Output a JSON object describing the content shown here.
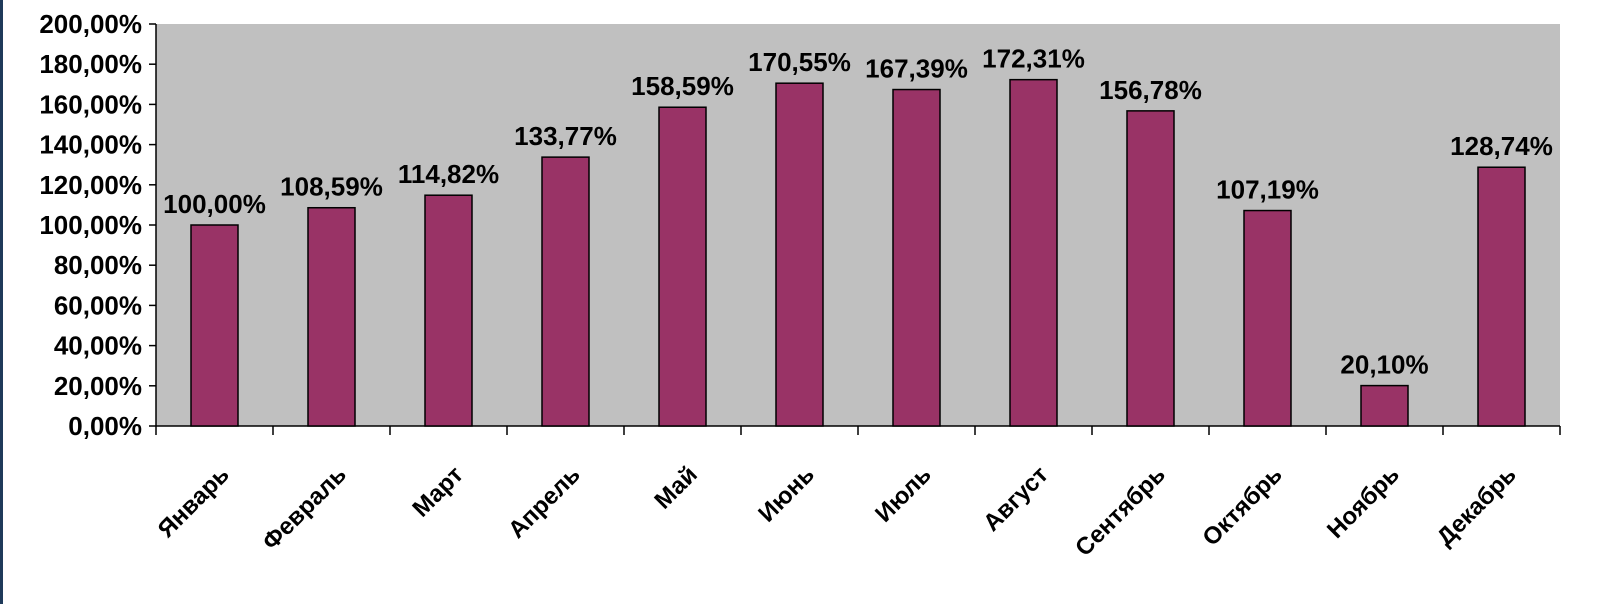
{
  "chart_data": {
    "type": "bar",
    "categories": [
      "Январь",
      "Февраль",
      "Март",
      "Апрель",
      "Май",
      "Июнь",
      "Июль",
      "Август",
      "Сентябрь",
      "Октябрь",
      "Ноябрь",
      "Декабрь"
    ],
    "values": [
      100.0,
      108.59,
      114.82,
      133.77,
      158.59,
      170.55,
      167.39,
      172.31,
      156.78,
      107.19,
      20.1,
      128.74
    ],
    "data_labels": [
      "100,00%",
      "108,59%",
      "114,82%",
      "133,77%",
      "158,59%",
      "170,55%",
      "167,39%",
      "172,31%",
      "156,78%",
      "107,19%",
      "20,10%",
      "128,74%"
    ],
    "y_ticks": [
      0,
      20,
      40,
      60,
      80,
      100,
      120,
      140,
      160,
      180,
      200
    ],
    "y_tick_labels": [
      "0,00%",
      "20,00%",
      "40,00%",
      "60,00%",
      "80,00%",
      "100,00%",
      "120,00%",
      "140,00%",
      "160,00%",
      "180,00%",
      "200,00%"
    ],
    "ylim": [
      0,
      200
    ],
    "title": "",
    "xlabel": "",
    "ylabel": "",
    "grid": false,
    "legend": "none"
  },
  "colors": {
    "bar": "#993366",
    "plot_background": "#c0c0c0",
    "page_background": "#ffffff",
    "side_border": "#1f3a5a"
  }
}
